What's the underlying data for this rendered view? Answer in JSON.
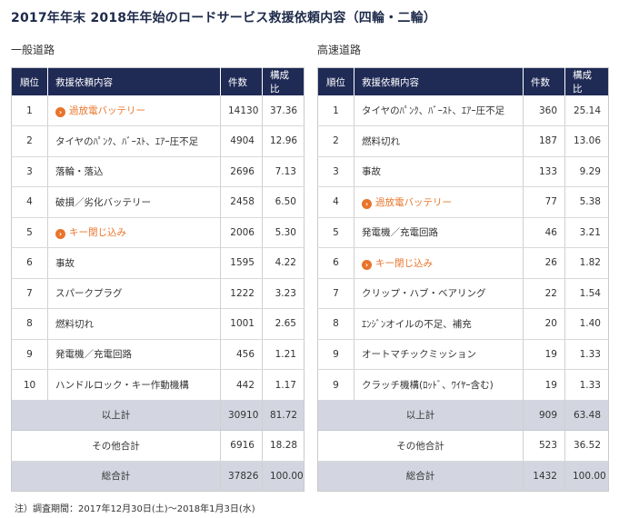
{
  "title": "2017年年末 2018年年始のロードサービス救援依頼内容（四輪・二輪）",
  "headers": {
    "rank": "順位",
    "content": "救援依頼内容",
    "count": "件数",
    "ratio": "構成比"
  },
  "general": {
    "label": "一般道路",
    "rows": [
      {
        "rank": "1",
        "content": "過放電バッテリー",
        "count": "14130",
        "ratio": "37.36",
        "highlight": true
      },
      {
        "rank": "2",
        "content": "タイヤのﾊﾟﾝｸ、ﾊﾞｰｽﾄ、ｴｱｰ圧不足",
        "count": "4904",
        "ratio": "12.96",
        "highlight": false
      },
      {
        "rank": "3",
        "content": "落輪・落込",
        "count": "2696",
        "ratio": "7.13",
        "highlight": false
      },
      {
        "rank": "4",
        "content": "破損／劣化バッテリー",
        "count": "2458",
        "ratio": "6.50",
        "highlight": false
      },
      {
        "rank": "5",
        "content": "キー閉じ込み",
        "count": "2006",
        "ratio": "5.30",
        "highlight": true
      },
      {
        "rank": "6",
        "content": "事故",
        "count": "1595",
        "ratio": "4.22",
        "highlight": false
      },
      {
        "rank": "7",
        "content": "スパークプラグ",
        "count": "1222",
        "ratio": "3.23",
        "highlight": false
      },
      {
        "rank": "8",
        "content": "燃料切れ",
        "count": "1001",
        "ratio": "2.65",
        "highlight": false
      },
      {
        "rank": "9",
        "content": "発電機／充電回路",
        "count": "456",
        "ratio": "1.21",
        "highlight": false
      },
      {
        "rank": "10",
        "content": "ハンドルロック・キー作動機構",
        "count": "442",
        "ratio": "1.17",
        "highlight": false
      }
    ],
    "subtotal": {
      "label": "以上計",
      "count": "30910",
      "ratio": "81.72"
    },
    "other": {
      "label": "その他合計",
      "count": "6916",
      "ratio": "18.28"
    },
    "total": {
      "label": "総合計",
      "count": "37826",
      "ratio": "100.00"
    }
  },
  "highway": {
    "label": "高速道路",
    "rows": [
      {
        "rank": "1",
        "content": "タイヤのﾊﾟﾝｸ、ﾊﾞｰｽﾄ、ｴｱｰ圧不足",
        "count": "360",
        "ratio": "25.14",
        "highlight": false
      },
      {
        "rank": "2",
        "content": "燃料切れ",
        "count": "187",
        "ratio": "13.06",
        "highlight": false
      },
      {
        "rank": "3",
        "content": "事故",
        "count": "133",
        "ratio": "9.29",
        "highlight": false
      },
      {
        "rank": "4",
        "content": "過放電バッテリー",
        "count": "77",
        "ratio": "5.38",
        "highlight": true
      },
      {
        "rank": "5",
        "content": "発電機／充電回路",
        "count": "46",
        "ratio": "3.21",
        "highlight": false
      },
      {
        "rank": "6",
        "content": "キー閉じ込み",
        "count": "26",
        "ratio": "1.82",
        "highlight": true
      },
      {
        "rank": "7",
        "content": "クリップ・ハブ・ベアリング",
        "count": "22",
        "ratio": "1.54",
        "highlight": false
      },
      {
        "rank": "8",
        "content": "ｴﾝｼﾞﾝオイルの不足、補充",
        "count": "20",
        "ratio": "1.40",
        "highlight": false
      },
      {
        "rank": "9",
        "content": "オートマチックミッション",
        "count": "19",
        "ratio": "1.33",
        "highlight": false
      },
      {
        "rank": "9",
        "content": "クラッチ機構(ﾛｯﾄﾞ、ﾜｲﾔｰ含む)",
        "count": "19",
        "ratio": "1.33",
        "highlight": false
      }
    ],
    "subtotal": {
      "label": "以上計",
      "count": "909",
      "ratio": "63.48"
    },
    "other": {
      "label": "その他合計",
      "count": "523",
      "ratio": "36.52"
    },
    "total": {
      "label": "総合計",
      "count": "1432",
      "ratio": "100.00"
    }
  },
  "arrow_glyph": "›",
  "colors": {
    "header_bg": "#1f2a55",
    "highlight": "#e8742a",
    "sum_bg": "#d3d6e0"
  },
  "footnote": "注）調査期間：2017年12月30日(土)〜2018年1月3日(水)"
}
